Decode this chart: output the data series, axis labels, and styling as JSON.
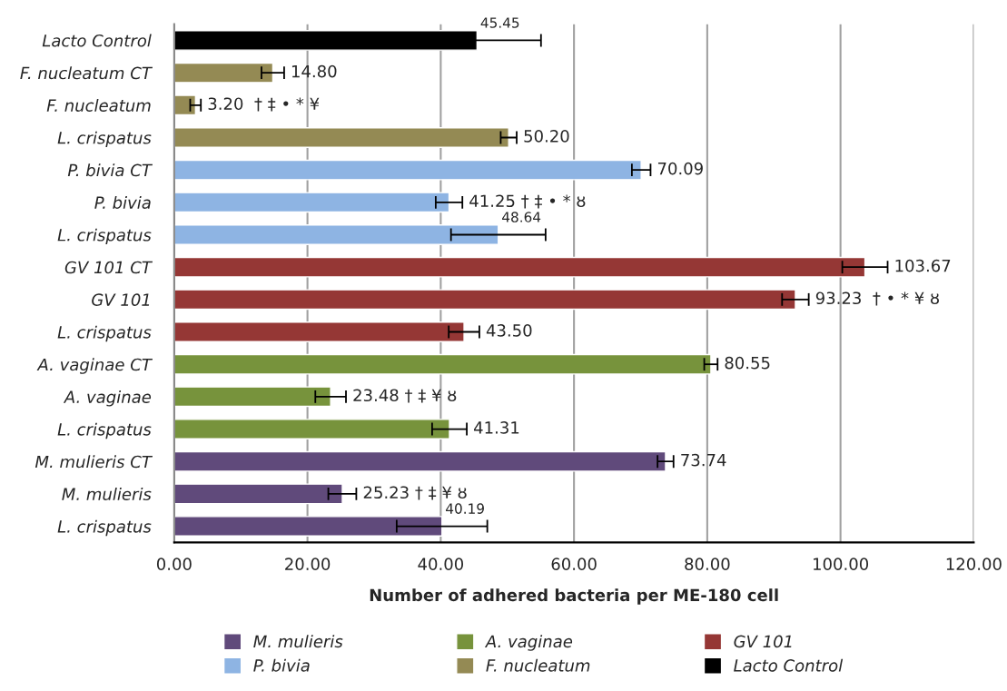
{
  "chart_data": {
    "type": "bar",
    "orientation": "horizontal",
    "xlabel": "Number of adhered bacteria per ME-180 cell",
    "categories": [
      "Lacto Control",
      "F. nucleatum CT",
      "F. nucleatum",
      "L. crispatus",
      "P. bivia CT",
      "P. bivia",
      "L. crispatus",
      "GV 101 CT",
      "GV 101",
      "L. crispatus",
      "A. vaginae CT",
      "A. vaginae",
      "L. crispatus",
      "M. mulieris CT",
      "M. mulieris",
      "L. crispatus"
    ],
    "series": [
      {
        "name": "M. mulieris",
        "color": "#604a7b",
        "values": [
          null,
          null,
          null,
          null,
          null,
          null,
          null,
          null,
          null,
          null,
          null,
          null,
          null,
          73.74,
          25.23,
          40.19
        ],
        "errors": [
          null,
          null,
          null,
          null,
          null,
          null,
          null,
          null,
          null,
          null,
          null,
          null,
          null,
          1.2,
          2.1,
          6.8
        ],
        "value_labels": [
          null,
          null,
          null,
          null,
          null,
          null,
          null,
          null,
          null,
          null,
          null,
          null,
          null,
          "73.74",
          "25.23 † ‡ ¥ ȣ",
          "40.19"
        ]
      },
      {
        "name": "A. vaginae",
        "color": "#77933c",
        "values": [
          null,
          null,
          null,
          null,
          null,
          null,
          null,
          null,
          null,
          null,
          80.55,
          23.48,
          41.31,
          null,
          null,
          null
        ],
        "errors": [
          null,
          null,
          null,
          null,
          null,
          null,
          null,
          null,
          null,
          null,
          1.0,
          2.3,
          2.6,
          null,
          null,
          null
        ],
        "value_labels": [
          null,
          null,
          null,
          null,
          null,
          null,
          null,
          null,
          null,
          null,
          "80.55",
          "23.48 † ‡ ¥ ȣ",
          "41.31",
          null,
          null,
          null
        ]
      },
      {
        "name": "GV 101",
        "color": "#953735",
        "values": [
          null,
          null,
          null,
          null,
          null,
          null,
          null,
          103.67,
          93.23,
          43.5,
          null,
          null,
          null,
          null,
          null,
          null
        ],
        "errors": [
          null,
          null,
          null,
          null,
          null,
          null,
          null,
          3.4,
          2.0,
          2.3,
          null,
          null,
          null,
          null,
          null,
          null
        ],
        "value_labels": [
          null,
          null,
          null,
          null,
          null,
          null,
          null,
          "103.67",
          "93.23  † • * ¥ ȣ",
          "43.50",
          null,
          null,
          null,
          null,
          null,
          null
        ]
      },
      {
        "name": "P. bivia",
        "color": "#8eb4e3",
        "values": [
          null,
          null,
          null,
          null,
          70.09,
          41.25,
          48.64,
          null,
          null,
          null,
          null,
          null,
          null,
          null,
          null,
          null
        ],
        "errors": [
          null,
          null,
          null,
          null,
          1.4,
          2.0,
          7.1,
          null,
          null,
          null,
          null,
          null,
          null,
          null,
          null,
          null
        ],
        "value_labels": [
          null,
          null,
          null,
          null,
          "70.09",
          "41.25 † ‡ • * ȣ",
          "48.64",
          null,
          null,
          null,
          null,
          null,
          null,
          null,
          null,
          null
        ]
      },
      {
        "name": "F. nucleatum",
        "color": "#948a54",
        "values": [
          null,
          14.8,
          3.2,
          50.2,
          null,
          null,
          null,
          null,
          null,
          null,
          null,
          null,
          null,
          null,
          null,
          null
        ],
        "errors": [
          null,
          1.7,
          0.8,
          1.2,
          null,
          null,
          null,
          null,
          null,
          null,
          null,
          null,
          null,
          null,
          null,
          null
        ],
        "value_labels": [
          null,
          "14.80",
          "3.20  † ‡ • * ¥",
          "50.20",
          null,
          null,
          null,
          null,
          null,
          null,
          null,
          null,
          null,
          null,
          null,
          null
        ]
      },
      {
        "name": "Lacto Control",
        "color": "#000000",
        "values": [
          45.45,
          null,
          null,
          null,
          null,
          null,
          null,
          null,
          null,
          null,
          null,
          null,
          null,
          null,
          null,
          null
        ],
        "errors": [
          9.6,
          null,
          null,
          null,
          null,
          null,
          null,
          null,
          null,
          null,
          null,
          null,
          null,
          null,
          null,
          null
        ],
        "value_labels": [
          "45.45",
          null,
          null,
          null,
          null,
          null,
          null,
          null,
          null,
          null,
          null,
          null,
          null,
          null,
          null,
          null
        ]
      }
    ],
    "xlim": [
      0,
      120
    ],
    "xticks": [
      {
        "value": 0,
        "label": "0.00"
      },
      {
        "value": 20,
        "label": "20.00"
      },
      {
        "value": 40,
        "label": "40.00"
      },
      {
        "value": 60,
        "label": "60.00"
      },
      {
        "value": 80,
        "label": "80.00"
      },
      {
        "value": 100,
        "label": "100.00"
      },
      {
        "value": 120,
        "label": "120.00"
      }
    ],
    "grid": "x",
    "legend": "bottom"
  }
}
